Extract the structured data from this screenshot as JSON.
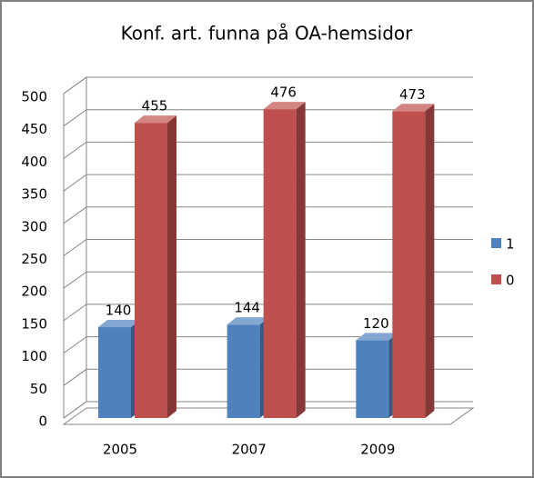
{
  "chart_data": {
    "type": "bar3d",
    "title": "Konf. art. funna på OA-hemsidor",
    "categories": [
      "2005",
      "2007",
      "2009"
    ],
    "series": [
      {
        "name": "1",
        "color": "#4f81bd",
        "values": [
          140,
          144,
          120
        ]
      },
      {
        "name": "0",
        "color": "#c0504d",
        "values": [
          455,
          476,
          473
        ]
      }
    ],
    "ylim": [
      0,
      500
    ],
    "yticks": [
      0,
      50,
      100,
      150,
      200,
      250,
      300,
      350,
      400,
      450,
      500
    ],
    "grid": true,
    "legend": "right"
  }
}
